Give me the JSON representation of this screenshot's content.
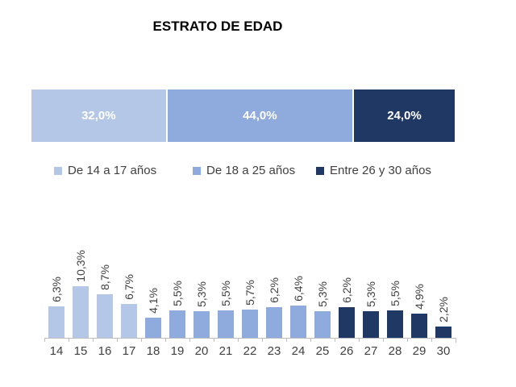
{
  "title": "ESTRATO DE EDAD",
  "colors": {
    "group_14_17": "#b4c7e7",
    "group_18_25": "#8faadc",
    "group_26_30": "#1f3864",
    "axis": "#bfbfbf",
    "label_text": "#404040",
    "stacked_label_text": "#ffffff"
  },
  "chart_data": [
    {
      "type": "bar",
      "subtype": "stacked-horizontal-100",
      "title": "ESTRATO DE EDAD",
      "series": [
        {
          "name": "De 14 a 17 años",
          "value": 32.0,
          "label": "32,0%",
          "color": "#b4c7e7"
        },
        {
          "name": "De 18 a 25 años",
          "value": 44.0,
          "label": "44,0%",
          "color": "#8faadc"
        },
        {
          "name": "Entre 26 y 30 años",
          "value": 24.0,
          "label": "24,0%",
          "color": "#1f3864"
        }
      ],
      "legend_position": "bottom",
      "grid": false
    },
    {
      "type": "bar",
      "categories": [
        "14",
        "15",
        "16",
        "17",
        "18",
        "19",
        "20",
        "21",
        "22",
        "23",
        "24",
        "25",
        "26",
        "27",
        "28",
        "29",
        "30"
      ],
      "values": [
        6.3,
        10.3,
        8.7,
        6.7,
        4.1,
        5.5,
        5.3,
        5.5,
        5.7,
        6.2,
        6.4,
        5.3,
        6.2,
        5.3,
        5.5,
        4.9,
        2.2
      ],
      "labels": [
        "6,3%",
        "10,3%",
        "8,7%",
        "6,7%",
        "4,1%",
        "5,5%",
        "5,3%",
        "5,5%",
        "5,7%",
        "6,2%",
        "6,4%",
        "5,3%",
        "6,2%",
        "5,3%",
        "5,5%",
        "4,9%",
        "2,2%"
      ],
      "group_index": [
        0,
        0,
        0,
        0,
        1,
        1,
        1,
        1,
        1,
        1,
        1,
        1,
        2,
        2,
        2,
        2,
        2
      ],
      "xlabel": "",
      "ylabel": "",
      "ylim": [
        0,
        11
      ],
      "grid": false,
      "value_label_rotation": 90,
      "legend_position": "none"
    }
  ]
}
